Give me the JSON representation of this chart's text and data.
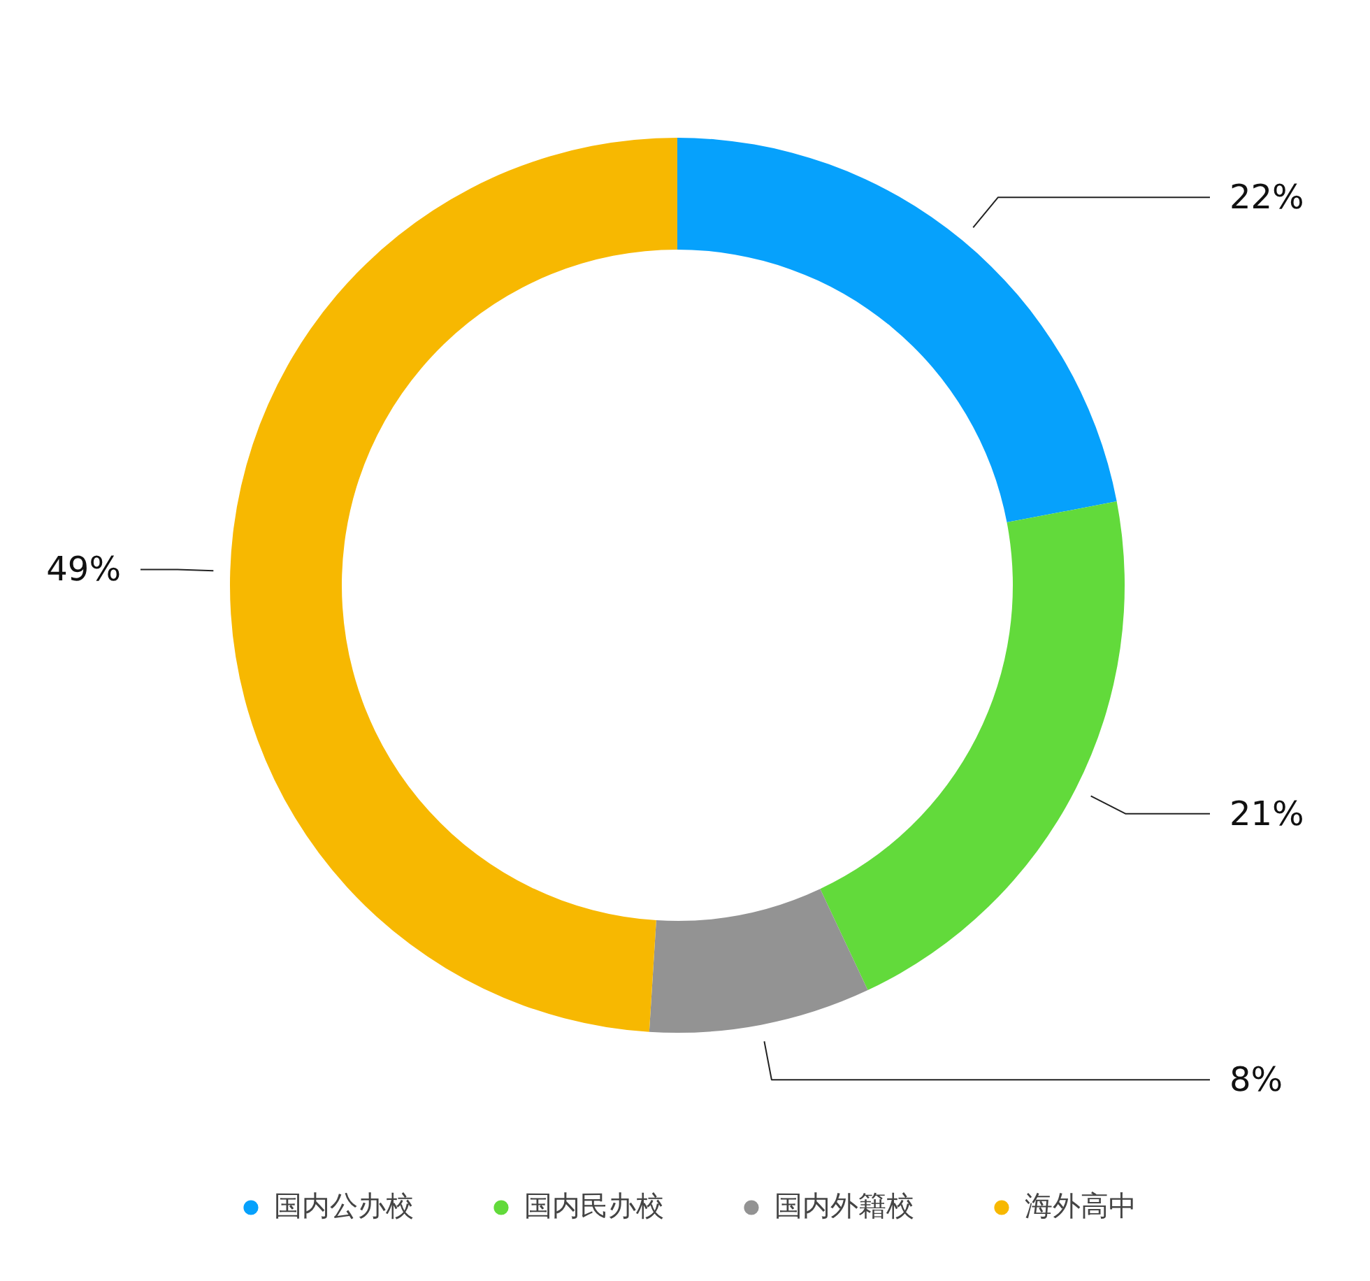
{
  "chart_data": {
    "type": "donut",
    "categories": [
      "国内公办校",
      "国内民办校",
      "国内外籍校",
      "海外高中"
    ],
    "values": [
      22,
      21,
      8,
      49
    ],
    "colors": [
      "#06a1fc",
      "#62da3b",
      "#939393",
      "#f7b801"
    ],
    "value_labels": [
      "22%",
      "21%",
      "8%",
      "49%"
    ],
    "legend": "bottom"
  }
}
